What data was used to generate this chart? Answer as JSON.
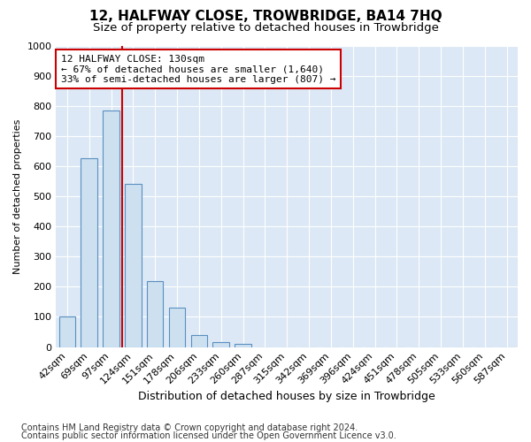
{
  "title": "12, HALFWAY CLOSE, TROWBRIDGE, BA14 7HQ",
  "subtitle": "Size of property relative to detached houses in Trowbridge",
  "xlabel": "Distribution of detached houses by size in Trowbridge",
  "ylabel": "Number of detached properties",
  "categories": [
    "42sqm",
    "69sqm",
    "97sqm",
    "124sqm",
    "151sqm",
    "178sqm",
    "206sqm",
    "233sqm",
    "260sqm",
    "287sqm",
    "315sqm",
    "342sqm",
    "369sqm",
    "396sqm",
    "424sqm",
    "451sqm",
    "478sqm",
    "505sqm",
    "533sqm",
    "560sqm",
    "587sqm"
  ],
  "values": [
    100,
    625,
    785,
    540,
    220,
    130,
    40,
    15,
    10,
    0,
    0,
    0,
    0,
    0,
    0,
    0,
    0,
    0,
    0,
    0,
    0
  ],
  "bar_color": "#cce0f0",
  "bar_edge_color": "#5a8fc0",
  "red_line_x": 2.5,
  "annotation_line1": "12 HALFWAY CLOSE: 130sqm",
  "annotation_line2": "← 67% of detached houses are smaller (1,640)",
  "annotation_line3": "33% of semi-detached houses are larger (807) →",
  "annotation_box_facecolor": "#ffffff",
  "annotation_box_edgecolor": "#cc0000",
  "red_line_color": "#cc0000",
  "footer1": "Contains HM Land Registry data © Crown copyright and database right 2024.",
  "footer2": "Contains public sector information licensed under the Open Government Licence v3.0.",
  "ylim_max": 1000,
  "yticks": [
    0,
    100,
    200,
    300,
    400,
    500,
    600,
    700,
    800,
    900,
    1000
  ],
  "axes_bg_color": "#dce8f5",
  "grid_color": "#ffffff",
  "title_fontsize": 11,
  "subtitle_fontsize": 9.5,
  "xlabel_fontsize": 9,
  "ylabel_fontsize": 8,
  "tick_fontsize": 8,
  "annot_fontsize": 8,
  "footer_fontsize": 7
}
